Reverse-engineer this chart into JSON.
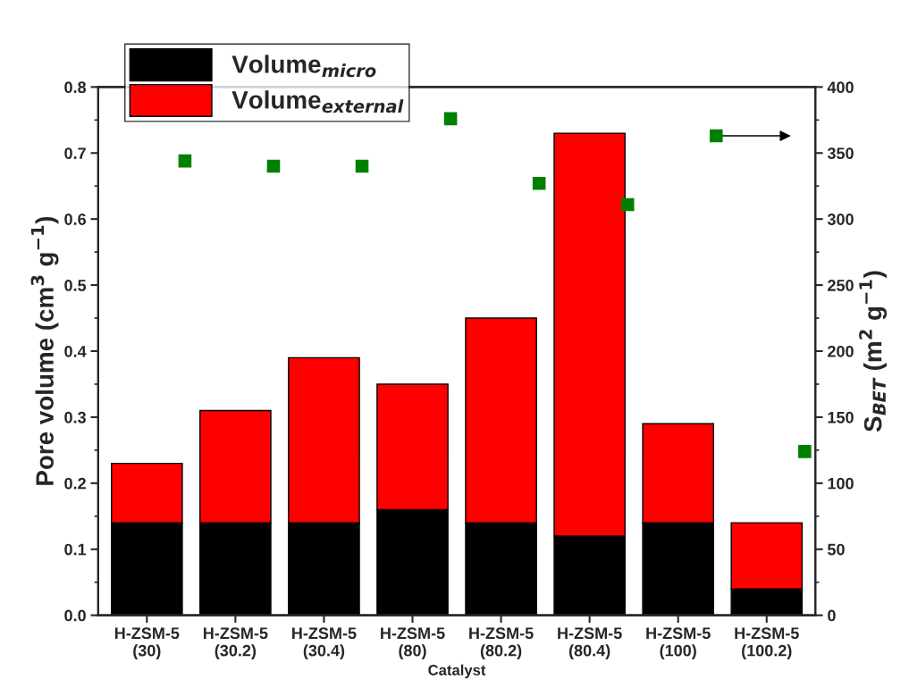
{
  "chart_data": {
    "type": "bar",
    "stacked": true,
    "xlabel": "Catalyst",
    "ylabel": "Pore volume (cm$^{3}$ g$^{−1}$)",
    "y2label": "S$_{BET}$ (m$^{2}$ g$^{−1}$)",
    "categories": [
      "H-ZSM-5\n(30)",
      "H-ZSM-5\n(30.2)",
      "H-ZSM-5\n(30.4)",
      "H-ZSM-5\n(80)",
      "H-ZSM-5\n(80.2)",
      "H-ZSM-5\n(80.4)",
      "H-ZSM-5\n(100)",
      "H-ZSM-5\n(100.2)"
    ],
    "series": [
      {
        "name": "Volume$_{micro}$",
        "color": "#000000",
        "values": [
          0.14,
          0.14,
          0.14,
          0.16,
          0.14,
          0.12,
          0.14,
          0.04
        ]
      },
      {
        "name": "Volume$_{external}$",
        "color": "#ff0000",
        "values": [
          0.09,
          0.17,
          0.25,
          0.19,
          0.31,
          0.61,
          0.15,
          0.1
        ]
      },
      {
        "type": "scatter",
        "axis": "y2",
        "marker": "square",
        "color": "#008000",
        "values": [
          344,
          340,
          340,
          376,
          327,
          311,
          363,
          124
        ]
      }
    ],
    "ylim": [
      0,
      0.8
    ],
    "yticks": [
      {
        "value": 0,
        "label": "0.0"
      },
      0.1,
      0.2,
      0.3,
      0.4,
      0.5,
      0.6,
      0.7,
      0.8
    ],
    "y2lim": [
      0,
      400
    ],
    "y2ticks": [
      0,
      50,
      100,
      150,
      200,
      250,
      300,
      350,
      400
    ],
    "legend": "top left",
    "grid": false
  }
}
